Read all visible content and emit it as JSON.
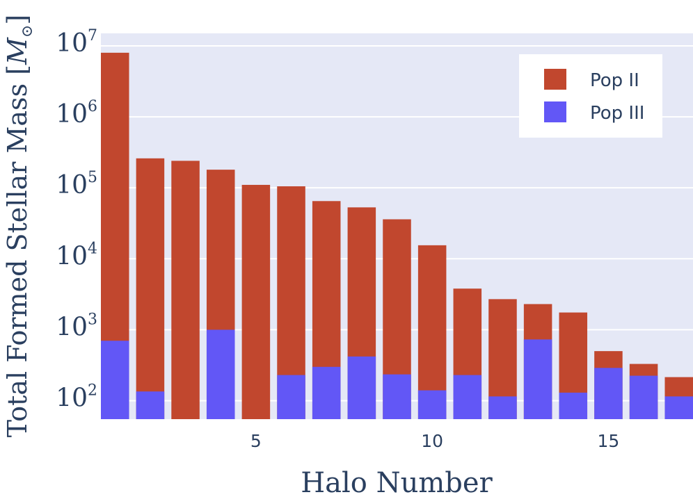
{
  "chart_data": {
    "type": "bar",
    "barmode": "overlay",
    "x": [
      1,
      2,
      3,
      4,
      5,
      6,
      7,
      8,
      9,
      10,
      11,
      12,
      13,
      14,
      15,
      16,
      17
    ],
    "series": [
      {
        "name": "Pop II",
        "color": "#c1472e",
        "values": [
          8000000,
          260000,
          240000,
          180000,
          110000,
          105000,
          65000,
          53000,
          36000,
          15500,
          3800,
          2700,
          2300,
          1750,
          500,
          330,
          215
        ]
      },
      {
        "name": "Pop III",
        "color": "#6257f6",
        "values": [
          700,
          135,
          null,
          1000,
          null,
          230,
          300,
          420,
          235,
          140,
          230,
          115,
          730,
          130,
          290,
          225,
          115
        ]
      }
    ],
    "xlabel": "Halo Number",
    "ylabel": "Total Formed Stellar Mass",
    "ylabel_unit": "M",
    "yscale": "log",
    "ylim": [
      55,
      15000000
    ],
    "xlim": [
      0.6,
      17.4
    ],
    "x_ticks": [
      5,
      10,
      15
    ],
    "y_ticks": [
      100,
      1000,
      10000,
      100000,
      1000000,
      10000000
    ],
    "y_tick_exponents": [
      "2",
      "3",
      "4",
      "5",
      "6",
      "7"
    ],
    "y_tick_base": "10",
    "grid": true,
    "legend_position": "top-right",
    "plot_bg": "#e5e8f6",
    "text_color": "#2a3f5f"
  }
}
